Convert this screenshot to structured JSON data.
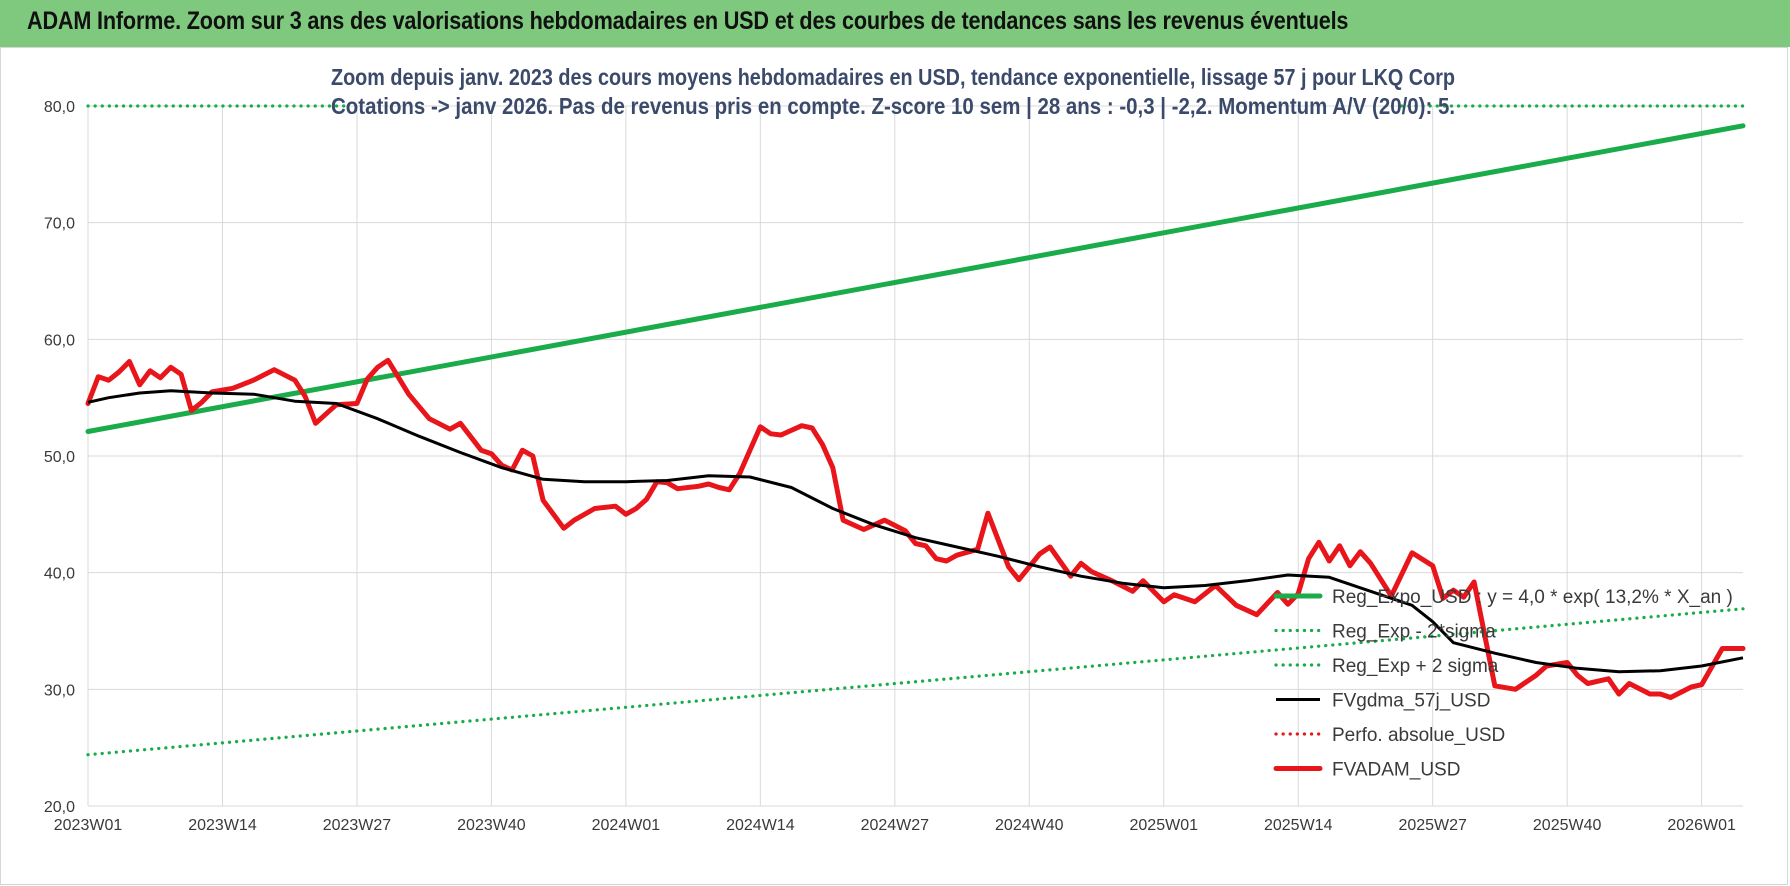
{
  "banner": {
    "title": "ADAM Informe. Zoom sur 3 ans des valorisations hebdomadaires en USD et des courbes de tendances sans les revenus éventuels"
  },
  "chart_data": {
    "type": "line",
    "subtitle_line1": "Zoom depuis janv. 2023 des cours moyens hebdomadaires en USD, tendance exponentielle, lissage 57 j pour LKQ Corp",
    "subtitle_line2": "Cotations -> janv 2026. Pas de revenus pris en compte. Z-score 10 sem | 28 ans : -0,3 | -2,2. Momentum A/V (20/0): 5.",
    "ylim": [
      20,
      80
    ],
    "y_ticks": [
      "20,0",
      "30,0",
      "40,0",
      "50,0",
      "60,0",
      "70,0",
      "80,0"
    ],
    "y_tick_values": [
      20,
      30,
      40,
      50,
      60,
      70,
      80
    ],
    "x_ticks": [
      "2023W01",
      "2023W14",
      "2023W27",
      "2023W40",
      "2024W01",
      "2024W14",
      "2024W27",
      "2024W40",
      "2025W01",
      "2025W14",
      "2025W27",
      "2025W40",
      "2026W01"
    ],
    "x_tick_weeks": [
      0,
      13,
      26,
      39,
      52,
      65,
      78,
      91,
      104,
      117,
      130,
      143,
      156
    ],
    "x_max_week": 160,
    "grid": true,
    "legend_position": "bottom-right",
    "series": [
      {
        "name": "Reg_Expo_USD : y = 4,0 * exp( 13,2% *  X_an )",
        "color": "#1aab4a",
        "style": "solid-thick",
        "x": [
          0,
          160
        ],
        "values": [
          52.1,
          78.3
        ]
      },
      {
        "name": "Reg_Exp - 2*sigma",
        "color": "#1aab4a",
        "style": "dotted",
        "x": [
          0,
          160
        ],
        "values": [
          24.4,
          36.9
        ]
      },
      {
        "name": "Reg_Exp + 2 sigma",
        "color": "#1aab4a",
        "style": "dotted",
        "x": [
          0,
          25
        ],
        "values": [
          80.0,
          80.0
        ],
        "x2": [
          127,
          160
        ],
        "values2": [
          80.0,
          80.0
        ]
      },
      {
        "name": "FVgdma_57j_USD",
        "color": "#000000",
        "style": "solid",
        "x": [
          0,
          2,
          5,
          8,
          12,
          16,
          20,
          24,
          28,
          32,
          36,
          40,
          44,
          48,
          52,
          56,
          60,
          64,
          68,
          72,
          76,
          80,
          84,
          88,
          92,
          96,
          100,
          104,
          108,
          112,
          116,
          120,
          124,
          128,
          130,
          132,
          136,
          140,
          144,
          148,
          152,
          156,
          160
        ],
        "values": [
          54.6,
          55.0,
          55.4,
          55.6,
          55.4,
          55.3,
          54.7,
          54.5,
          53.2,
          51.7,
          50.3,
          49.0,
          48.0,
          47.8,
          47.8,
          47.9,
          48.3,
          48.2,
          47.3,
          45.5,
          44.1,
          43.0,
          42.2,
          41.4,
          40.5,
          39.7,
          39.1,
          38.7,
          38.9,
          39.3,
          39.8,
          39.6,
          38.4,
          37.2,
          35.8,
          34.0,
          33.1,
          32.3,
          31.8,
          31.5,
          31.6,
          32.0,
          32.7
        ]
      },
      {
        "name": "Perfo. absolue_USD",
        "color": "#e21b1b",
        "style": "dotted",
        "x": [],
        "values": []
      },
      {
        "name": "FVADAM_USD",
        "color": "#e8161b",
        "style": "solid-thick",
        "x": [
          0,
          1,
          2,
          3,
          4,
          5,
          6,
          7,
          8,
          9,
          10,
          11,
          12,
          14,
          16,
          18,
          20,
          21,
          22,
          24,
          26,
          27,
          28,
          29,
          31,
          33,
          35,
          36,
          38,
          39,
          40,
          41,
          42,
          43,
          44,
          46,
          47,
          49,
          51,
          52,
          53,
          54,
          55,
          56,
          57,
          58,
          59,
          60,
          61,
          62,
          63,
          65,
          66,
          67,
          69,
          70,
          71,
          72,
          73,
          75,
          77,
          79,
          80,
          81,
          82,
          83,
          84,
          86,
          87,
          89,
          90,
          92,
          93,
          95,
          96,
          97,
          99,
          101,
          102,
          104,
          105,
          107,
          109,
          111,
          113,
          115,
          116,
          117,
          118,
          119,
          120,
          121,
          122,
          123,
          124,
          126,
          128,
          130,
          131,
          132,
          133,
          134,
          136,
          138,
          140,
          141,
          143,
          144,
          145,
          147,
          148,
          149,
          151,
          152,
          153,
          155,
          156,
          158,
          160
        ],
        "values": [
          54.5,
          56.8,
          56.5,
          57.2,
          58.1,
          56.1,
          57.3,
          56.7,
          57.6,
          57.0,
          53.9,
          54.6,
          55.5,
          55.8,
          56.5,
          57.4,
          56.5,
          55.1,
          52.8,
          54.4,
          54.5,
          56.6,
          57.6,
          58.2,
          55.3,
          53.2,
          52.3,
          52.8,
          50.5,
          50.2,
          49.2,
          48.8,
          50.5,
          50.0,
          46.2,
          43.8,
          44.5,
          45.5,
          45.7,
          45.0,
          45.5,
          46.3,
          47.8,
          47.7,
          47.2,
          47.3,
          47.4,
          47.6,
          47.3,
          47.1,
          48.5,
          52.5,
          51.9,
          51.8,
          52.6,
          52.4,
          51.0,
          49.0,
          44.5,
          43.7,
          44.5,
          43.6,
          42.5,
          42.3,
          41.2,
          41.0,
          41.5,
          42.0,
          45.1,
          40.5,
          39.4,
          41.6,
          42.2,
          39.7,
          40.8,
          40.1,
          39.3,
          38.4,
          39.3,
          37.5,
          38.1,
          37.5,
          38.9,
          37.2,
          36.4,
          38.3,
          37.3,
          38.2,
          41.2,
          42.6,
          41.0,
          42.3,
          40.6,
          41.8,
          40.8,
          38.0,
          41.7,
          40.6,
          37.8,
          38.5,
          37.9,
          39.2,
          30.3,
          30.0,
          31.2,
          32.0,
          32.3,
          31.2,
          30.5,
          30.9,
          29.6,
          30.5,
          29.6,
          29.6,
          29.3,
          30.2,
          30.4,
          33.5,
          33.5
        ]
      }
    ]
  }
}
